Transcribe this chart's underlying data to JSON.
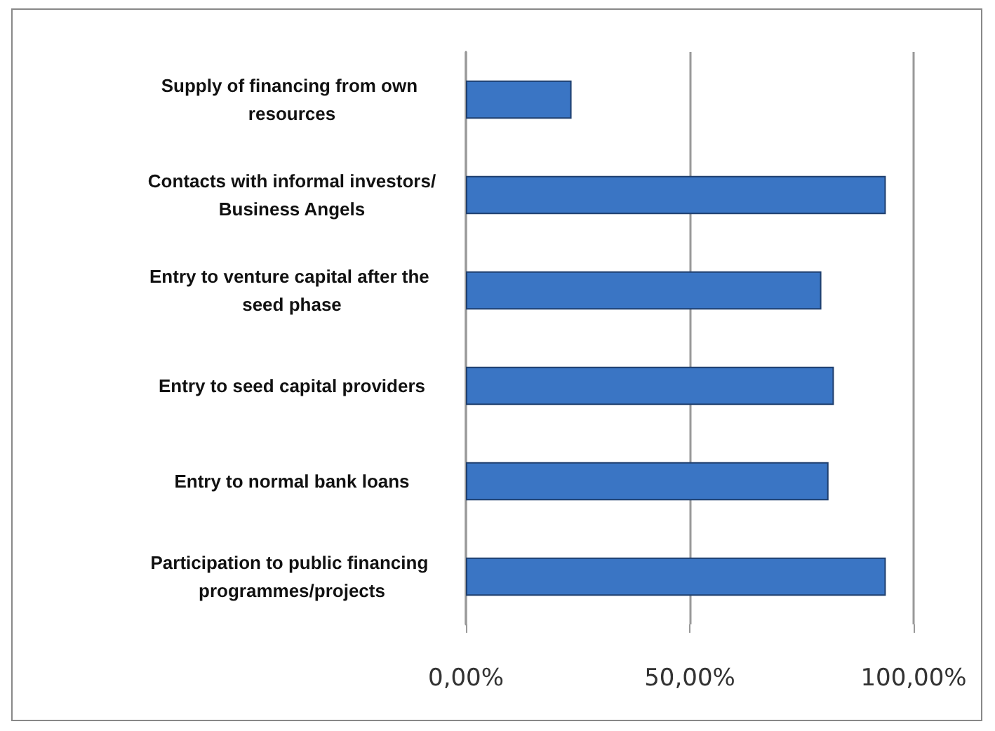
{
  "chart_data": {
    "type": "bar",
    "orientation": "horizontal",
    "categories": [
      "Supply of financing from own resources",
      "Contacts with informal investors/Business Angels",
      "Entry to venture capital after the seed phase",
      "Entry to seed capital providers",
      "Entry to normal bank loans",
      "Participation to public financing programmes/projects"
    ],
    "values": [
      23.6,
      93.8,
      79.4,
      82.2,
      81,
      93.8
    ],
    "color": "#3a75c4",
    "xlim": [
      0,
      100
    ],
    "xticks": [
      {
        "value": 0,
        "label": "0,00%"
      },
      {
        "value": 50,
        "label": "50,00%"
      },
      {
        "value": 100,
        "label": "100,00%"
      }
    ],
    "grid": "x"
  }
}
